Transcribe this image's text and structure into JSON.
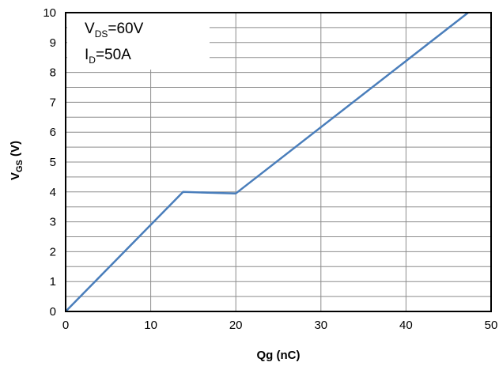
{
  "chart_data": {
    "type": "line",
    "xlabel": "Qg (nC)",
    "ylabel": {
      "main": "V",
      "sub": "GS",
      "suffix": " (V)"
    },
    "xlim": [
      0,
      50
    ],
    "ylim": [
      0,
      10
    ],
    "x_ticks": [
      0,
      10,
      20,
      30,
      40,
      50
    ],
    "y_ticks": [
      0,
      1,
      2,
      3,
      4,
      5,
      6,
      7,
      8,
      9,
      10
    ],
    "x_minor_grid_step": 10,
    "y_grid_step": 0.5,
    "grid": true,
    "line_color": "#4a7ebb",
    "series": [
      {
        "x": [
          0,
          13.8,
          20,
          47.3
        ],
        "y": [
          0,
          4.0,
          3.95,
          10.0
        ]
      }
    ],
    "annotations": [
      {
        "main": "V",
        "sub": "DS",
        "rest": "=60V"
      },
      {
        "main": "I",
        "sub": "D",
        "rest": "=50A"
      }
    ]
  }
}
